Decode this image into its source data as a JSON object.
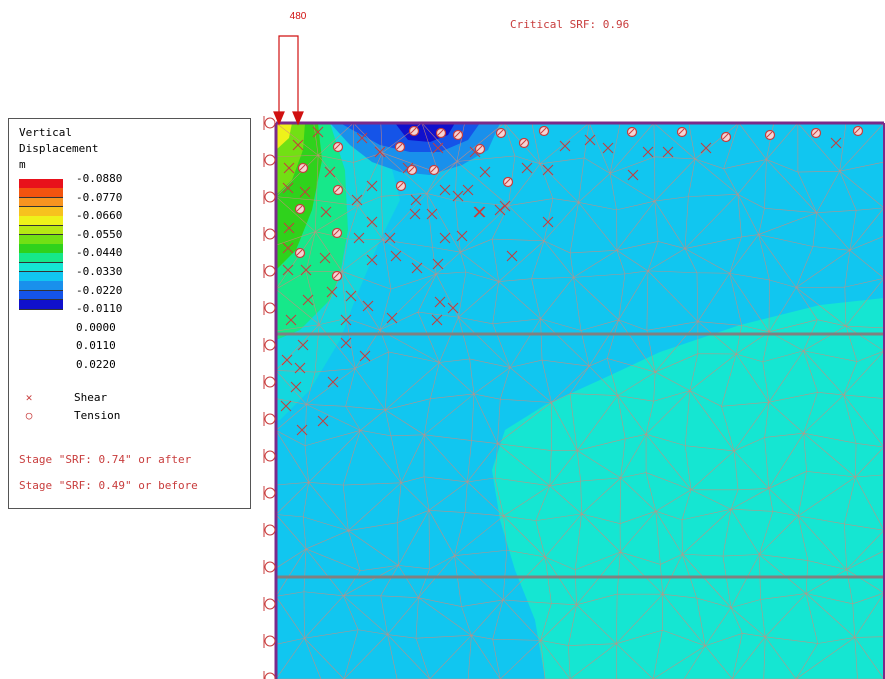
{
  "legend": {
    "title_line1": "Vertical",
    "title_line2": "Displacement",
    "title_line3": "m",
    "values": [
      "-0.0880",
      "-0.0770",
      "-0.0660",
      "-0.0550",
      "-0.0440",
      "-0.0330",
      "-0.0220",
      "-0.0110",
      "0.0000",
      "0.0110",
      "0.0220"
    ],
    "colors": [
      "#e8111b",
      "#f2540f",
      "#f79420",
      "#f7c21e",
      "#eef21a",
      "#b6e814",
      "#72e014",
      "#2fd21c",
      "#16e88a",
      "#15e6d2",
      "#11c6f0",
      "#1990ec",
      "#1554e8",
      "#1010cc"
    ],
    "shear_label": "Shear",
    "tension_label": "Tension",
    "stage_after": "Stage \"SRF: 0.74\" or after",
    "stage_before": "Stage \"SRF: 0.49\" or before"
  },
  "critical_srf": "Critical SRF: 0.96",
  "load_value": "480",
  "colors": {
    "boundary": "#7a2a8a",
    "mesh_line": "#d08a7a",
    "marker": "#c83c3c",
    "load_arrow": "#d01010",
    "layer_line": "#808080"
  }
}
